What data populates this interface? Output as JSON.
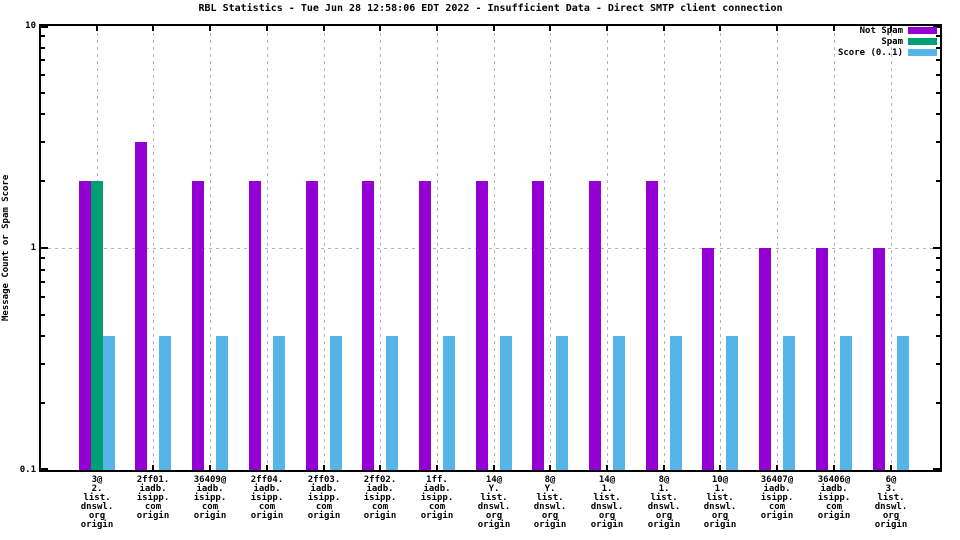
{
  "chart_data": {
    "type": "bar",
    "title": "RBL Statistics - Tue Jun 28 12:58:06 EDT 2022 - Insufficient Data - Direct SMTP client connection",
    "xlabel": "",
    "ylabel": "Message Count or Spam Score",
    "yscale": "log",
    "ylim": [
      0.1,
      10
    ],
    "ytick_labels": [
      "10",
      "1",
      "0.1"
    ],
    "ytick_values": [
      10,
      1,
      0.1
    ],
    "grid": true,
    "legend_position": "top-right-inside",
    "categories": [
      [
        "3@",
        "2.",
        "list.",
        "dnswl.",
        "org",
        "origin"
      ],
      [
        "2ff01.",
        "iadb.",
        "isipp.",
        "com",
        "origin"
      ],
      [
        "36409@",
        "iadb.",
        "isipp.",
        "com",
        "origin"
      ],
      [
        "2ff04.",
        "iadb.",
        "isipp.",
        "com",
        "origin"
      ],
      [
        "2ff03.",
        "iadb.",
        "isipp.",
        "com",
        "origin"
      ],
      [
        "2ff02.",
        "iadb.",
        "isipp.",
        "com",
        "origin"
      ],
      [
        "1ff.",
        "iadb.",
        "isipp.",
        "com",
        "origin"
      ],
      [
        "14@",
        "Y.",
        "list.",
        "dnswl.",
        "org",
        "origin"
      ],
      [
        "8@",
        "Y.",
        "list.",
        "dnswl.",
        "org",
        "origin"
      ],
      [
        "14@",
        "1.",
        "list.",
        "dnswl.",
        "org",
        "origin"
      ],
      [
        "8@",
        "1.",
        "list.",
        "dnswl.",
        "org",
        "origin"
      ],
      [
        "10@",
        "1.",
        "list.",
        "dnswl.",
        "org",
        "origin"
      ],
      [
        "36407@",
        "iadb.",
        "isipp.",
        "com",
        "origin"
      ],
      [
        "36406@",
        "iadb.",
        "isipp.",
        "com",
        "origin"
      ],
      [
        "6@",
        "3.",
        "list.",
        "dnswl.",
        "org",
        "origin"
      ]
    ],
    "series": [
      {
        "name": "Not Spam",
        "color": "#9400d3",
        "values": [
          2,
          3,
          2,
          2,
          2,
          2,
          2,
          2,
          2,
          2,
          2,
          1,
          1,
          1,
          1
        ]
      },
      {
        "name": "Spam",
        "color": "#009e73",
        "values": [
          2,
          0,
          0,
          0,
          0,
          0,
          0,
          0,
          0,
          0,
          0,
          0,
          0,
          0,
          0
        ]
      },
      {
        "name": "Score (0..1)",
        "color": "#56b4e9",
        "values": [
          0.4,
          0.4,
          0.4,
          0.4,
          0.4,
          0.4,
          0.4,
          0.4,
          0.4,
          0.4,
          0.4,
          0.4,
          0.4,
          0.4,
          0.4
        ]
      }
    ]
  },
  "colors": {
    "background": "#ffffff",
    "border": "#000000",
    "grid": "#b3b3b3",
    "not_spam": "#9400d3",
    "spam": "#009e73",
    "score": "#56b4e9"
  }
}
